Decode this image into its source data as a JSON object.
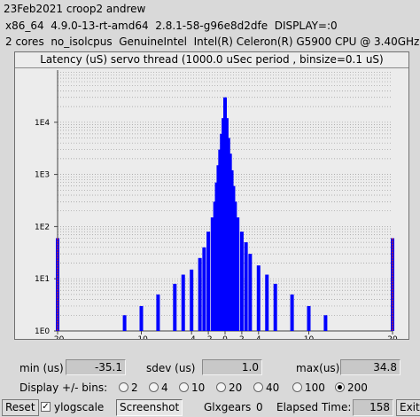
{
  "header": {
    "line1": "23Feb2021 croop2 andrew",
    "line2": "x86_64  4.9.0-13-rt-amd64  2.8.1-58-g96e8d2dfe  DISPLAY=:0",
    "line3": "2 cores  no_isolcpus  GenuineIntel  Intel(R) Celeron(R) G5900 CPU @ 3.40GHz"
  },
  "chart_data": {
    "type": "bar",
    "title": "Latency (uS) servo thread (1000.0 uSec period , binsize=0.1 uS)",
    "y_scale": "log",
    "ylim": [
      1,
      100000
    ],
    "y_tick_labels": [
      "1E0",
      "1E1",
      "1E2",
      "1E3",
      "1E4"
    ],
    "xlim": [
      -20,
      20
    ],
    "x_tick_labels": [
      "-20",
      "-10",
      "-4",
      "-2",
      "0",
      "2",
      "4",
      "10",
      "20"
    ],
    "bar_color": "#0000ff",
    "outlier_marker_color": "#cc2222",
    "x": [
      -20,
      -14,
      -12,
      -10,
      -8,
      -6,
      -5,
      -4,
      -3,
      -2.5,
      -2,
      -1.5,
      -1.2,
      -1,
      -0.8,
      -0.6,
      -0.4,
      -0.2,
      0,
      0.2,
      0.4,
      0.6,
      0.8,
      1,
      1.2,
      1.5,
      2,
      2.5,
      3,
      4,
      5,
      6,
      8,
      10,
      12,
      14,
      20
    ],
    "values": [
      60,
      1,
      2,
      3,
      5,
      8,
      12,
      15,
      25,
      40,
      80,
      150,
      300,
      700,
      1500,
      3000,
      6000,
      12000,
      30000,
      12000,
      5000,
      2500,
      1200,
      600,
      300,
      150,
      80,
      50,
      30,
      18,
      12,
      8,
      5,
      3,
      2,
      1,
      60
    ]
  },
  "stats": {
    "min_label": "min (us)",
    "min_value": "-35.1",
    "sdev_label": "sdev (us)",
    "sdev_value": "1.0",
    "max_label": "max(us)",
    "max_value": "34.8"
  },
  "bins": {
    "label": "Display +/- bins:",
    "options": [
      "2",
      "4",
      "10",
      "20",
      "40",
      "100",
      "200"
    ],
    "selected": "200"
  },
  "bottom": {
    "reset_label": "Reset",
    "ylogscale_label": "ylogscale",
    "ylogscale_checked": true,
    "screenshot_label": "Screenshot",
    "glxgears_label": "Glxgears",
    "glxgears_value": "0",
    "elapsed_label": "Elapsed Time:",
    "elapsed_value": "158",
    "exit_label": "Exit"
  }
}
